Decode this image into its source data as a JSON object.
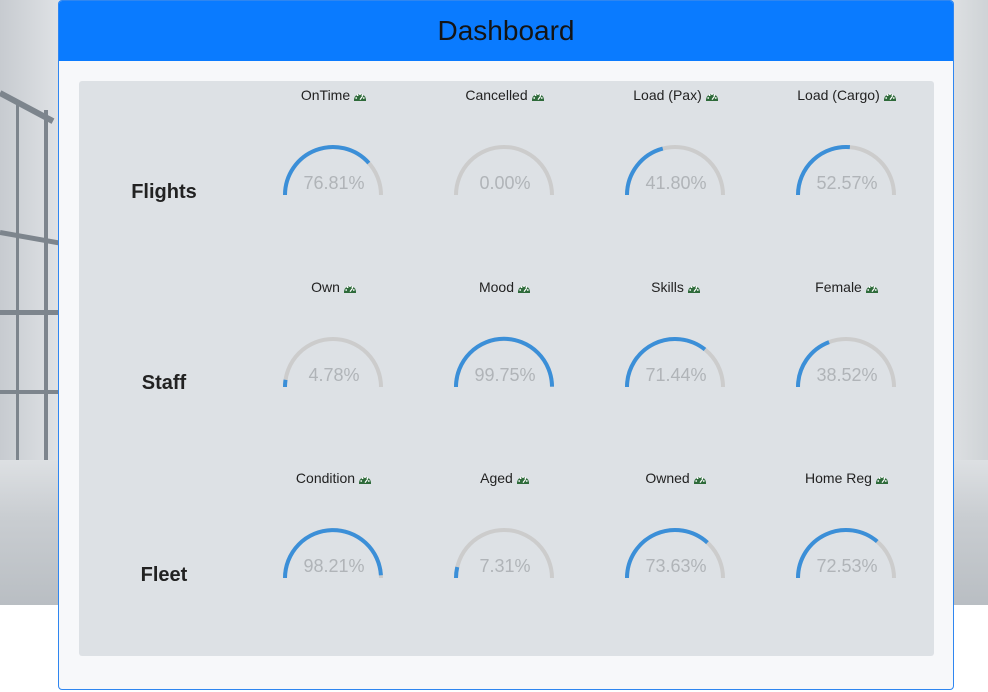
{
  "dashboard": {
    "title": "Dashboard"
  },
  "colors": {
    "header": "#0a7bff",
    "gauge_track": "#cccccc",
    "gauge_fill": "#3b8fd8",
    "icon": "#2e6a3a"
  },
  "rows": [
    {
      "label": "Flights",
      "gauges": [
        {
          "title": "OnTime",
          "value_text": "76.81%",
          "value": 76.81,
          "icon": "speedometer-icon"
        },
        {
          "title": "Cancelled",
          "value_text": "0.00%",
          "value": 0.0,
          "icon": "speedometer-icon"
        },
        {
          "title": "Load (Pax)",
          "value_text": "41.80%",
          "value": 41.8,
          "icon": "speedometer-icon"
        },
        {
          "title": "Load (Cargo)",
          "value_text": "52.57%",
          "value": 52.57,
          "icon": "speedometer-icon"
        }
      ]
    },
    {
      "label": "Staff",
      "gauges": [
        {
          "title": "Own",
          "value_text": "4.78%",
          "value": 4.78,
          "icon": "speedometer-icon"
        },
        {
          "title": "Mood",
          "value_text": "99.75%",
          "value": 99.75,
          "icon": "speedometer-icon"
        },
        {
          "title": "Skills",
          "value_text": "71.44%",
          "value": 71.44,
          "icon": "speedometer-icon"
        },
        {
          "title": "Female",
          "value_text": "38.52%",
          "value": 38.52,
          "icon": "speedometer-icon"
        }
      ]
    },
    {
      "label": "Fleet",
      "gauges": [
        {
          "title": "Condition",
          "value_text": "98.21%",
          "value": 98.21,
          "icon": "speedometer-icon"
        },
        {
          "title": "Aged",
          "value_text": "7.31%",
          "value": 7.31,
          "icon": "speedometer-icon"
        },
        {
          "title": "Owned",
          "value_text": "73.63%",
          "value": 73.63,
          "icon": "speedometer-icon"
        },
        {
          "title": "Home Reg",
          "value_text": "72.53%",
          "value": 72.53,
          "icon": "speedometer-icon"
        }
      ]
    }
  ]
}
